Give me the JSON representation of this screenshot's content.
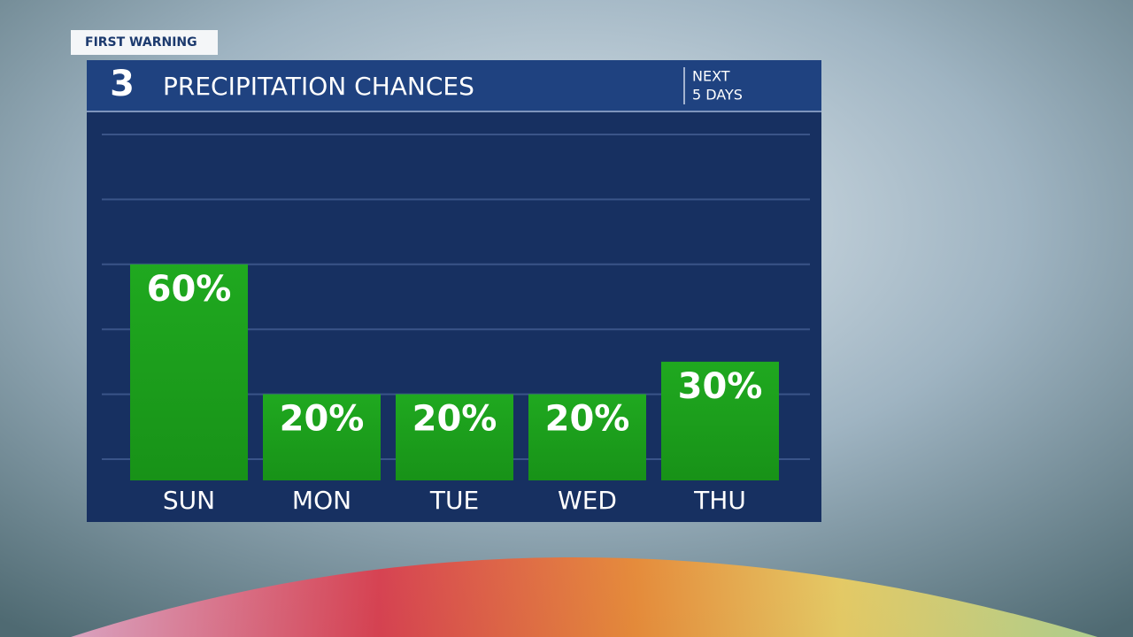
{
  "brand": "FIRST WARNING",
  "logo": "3",
  "chart_data": {
    "type": "bar",
    "title": "PRECIPITATION CHANCES",
    "subtitle": [
      "NEXT",
      "5 DAYS"
    ],
    "categories": [
      "SUN",
      "MON",
      "TUE",
      "WED",
      "THU"
    ],
    "values": [
      60,
      20,
      20,
      20,
      30
    ],
    "value_labels": [
      "60%",
      "20%",
      "20%",
      "20%",
      "30%"
    ],
    "color": "#1c9e1c",
    "ylim": [
      0,
      100
    ],
    "yticks": [
      0,
      20,
      40,
      60,
      80,
      100
    ],
    "grid": true
  }
}
